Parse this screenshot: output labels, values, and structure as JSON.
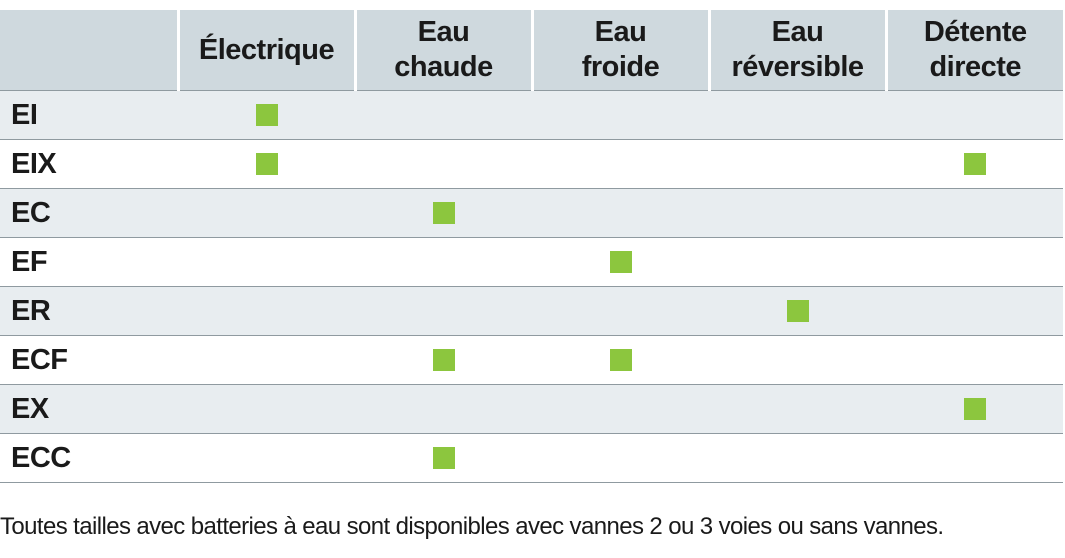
{
  "table": {
    "columns": [
      "Électrique",
      "Eau\nchaude",
      "Eau\nfroide",
      "Eau\nréversible",
      "Détente\ndirecte"
    ],
    "rows": [
      {
        "label": "EI",
        "marks": [
          true,
          false,
          false,
          false,
          false
        ]
      },
      {
        "label": "EIX",
        "marks": [
          true,
          false,
          false,
          false,
          true
        ]
      },
      {
        "label": "EC",
        "marks": [
          false,
          true,
          false,
          false,
          false
        ]
      },
      {
        "label": "EF",
        "marks": [
          false,
          false,
          true,
          false,
          false
        ]
      },
      {
        "label": "ER",
        "marks": [
          false,
          false,
          false,
          true,
          false
        ]
      },
      {
        "label": "ECF",
        "marks": [
          false,
          true,
          true,
          false,
          false
        ]
      },
      {
        "label": "EX",
        "marks": [
          false,
          false,
          false,
          false,
          true
        ]
      },
      {
        "label": "ECC",
        "marks": [
          false,
          true,
          false,
          false,
          false
        ]
      }
    ]
  },
  "colors": {
    "header_bg": "#cfd9de",
    "shaded_row_bg": "#e8edf0",
    "mark": "#8cc63e"
  },
  "footnote": "Toutes tailles avec batteries à eau sont disponibles avec vannes 2 ou 3 voies ou sans vannes."
}
